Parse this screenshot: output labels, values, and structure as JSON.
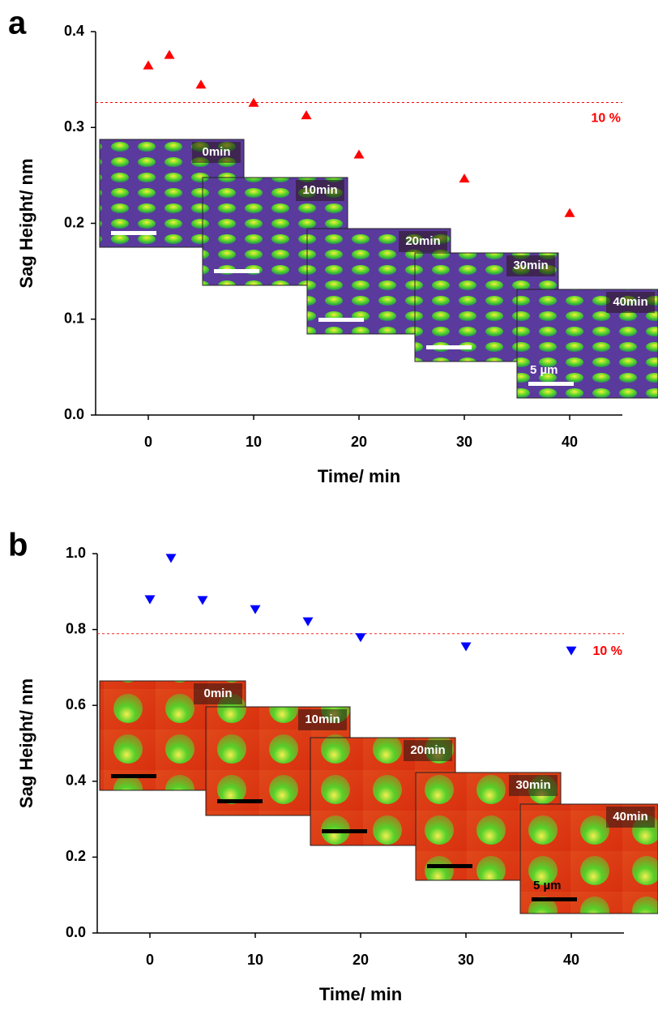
{
  "chart_data": [
    {
      "type": "scatter",
      "panel_label": "a",
      "xlabel": "Time/ min",
      "ylabel": "Sag Height/ nm",
      "x": [
        0,
        2,
        5,
        10,
        15,
        20,
        30,
        40
      ],
      "values": [
        0.365,
        0.376,
        0.345,
        0.326,
        0.313,
        0.272,
        0.247,
        0.211
      ],
      "color": "#ff0000",
      "marker": "triangle-up",
      "xlim": [
        -5,
        45
      ],
      "xticks": [
        0,
        10,
        20,
        30,
        40
      ],
      "ylim": [
        0,
        0.4
      ],
      "yticks": [
        {
          "value": 0,
          "label": "0.0"
        },
        0.1,
        0.2,
        0.3,
        0.4
      ],
      "reference_line": 0.326,
      "reference_label": "10 %",
      "insets": [
        "0min",
        "10min",
        "20min",
        "30min",
        "40min"
      ],
      "scale_bar_label": "5 µm"
    },
    {
      "type": "scatter",
      "panel_label": "b",
      "xlabel": "Time/ min",
      "ylabel": "Sag Height/ nm",
      "x": [
        0,
        2,
        5,
        10,
        15,
        20,
        30,
        40
      ],
      "values": [
        0.879,
        0.988,
        0.877,
        0.853,
        0.821,
        0.779,
        0.755,
        0.744
      ],
      "color": "#0000ff",
      "marker": "triangle-down",
      "xlim": [
        -5,
        45
      ],
      "xticks": [
        0,
        10,
        20,
        30,
        40
      ],
      "ylim": [
        0,
        1.0
      ],
      "yticks": [
        {
          "value": 0,
          "label": "0.0"
        },
        0.2,
        0.4,
        0.6,
        0.8,
        {
          "value": 1.0,
          "label": "1.0"
        }
      ],
      "reference_line": 0.789,
      "reference_label": "10 %",
      "insets": [
        "0min",
        "10min",
        "20min",
        "30min",
        "40min"
      ],
      "scale_bar_label": "5 µm"
    }
  ]
}
